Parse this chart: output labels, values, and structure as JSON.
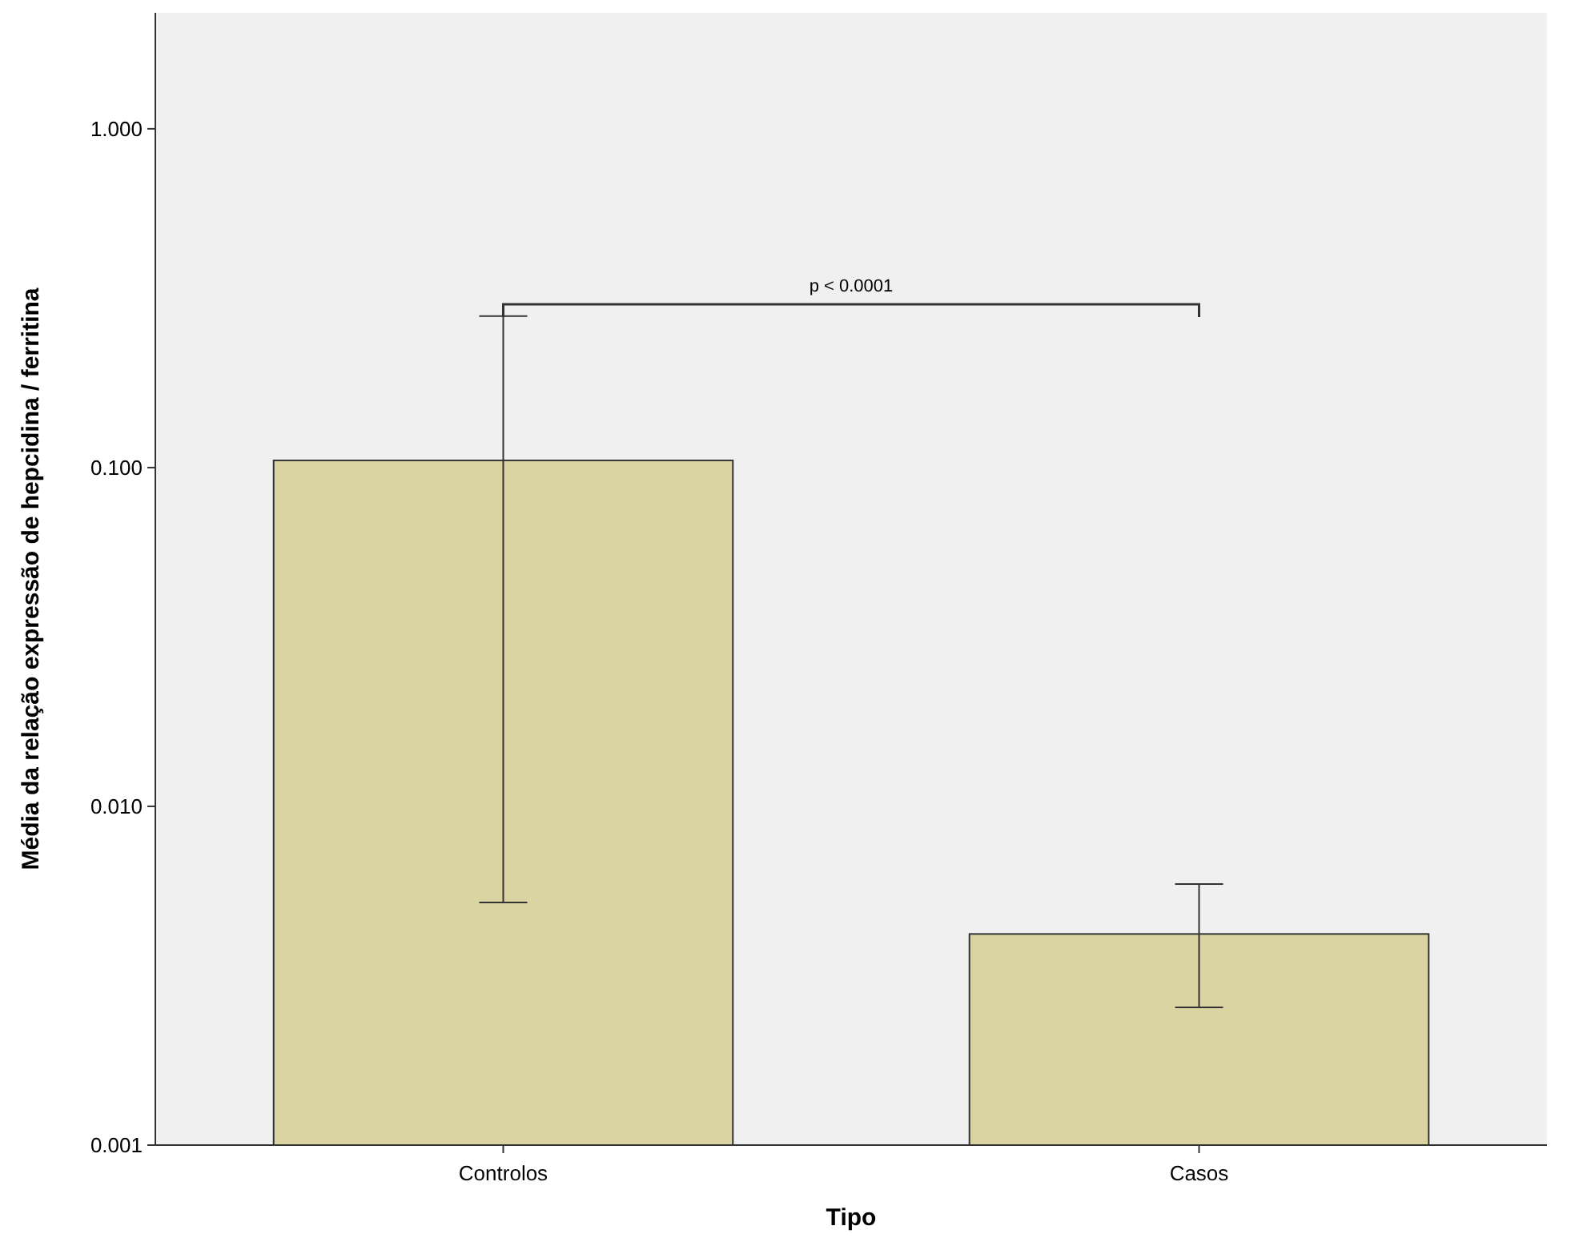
{
  "chart_data": {
    "type": "bar",
    "xlabel": "Tipo",
    "ylabel": "Média da relação expressão de hepcidina / ferritina",
    "categories": [
      "Controlos",
      "Casos"
    ],
    "values": [
      0.105,
      0.0042
    ],
    "errors": [
      [
        0.0052,
        0.28
      ],
      [
        0.00255,
        0.0059
      ]
    ],
    "color": "#d9d4a2",
    "log": true,
    "ylim": [
      0.001,
      2.2
    ],
    "yticks": [
      {
        "value": 0.001,
        "label": "0.001"
      },
      {
        "value": 0.01,
        "label": "0.010"
      },
      {
        "value": 0.1,
        "label": "0.100"
      },
      {
        "value": 1,
        "label": "1.000"
      }
    ],
    "grid": false,
    "annotations": [
      "p < 0.0001"
    ]
  }
}
